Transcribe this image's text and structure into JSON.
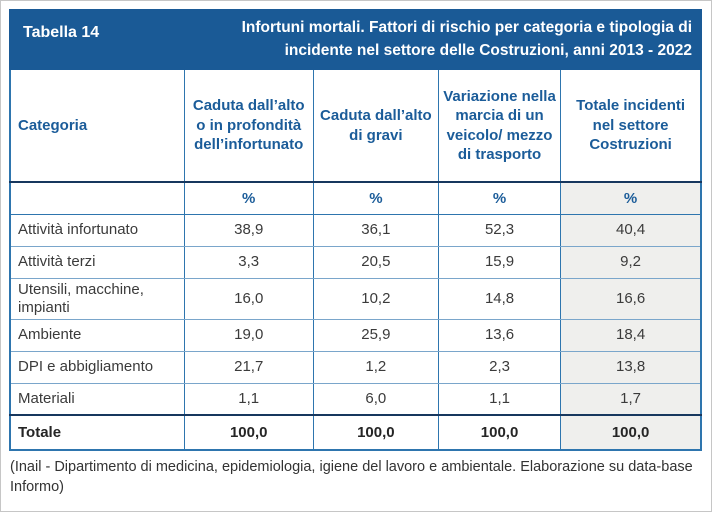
{
  "page": {
    "label": "Tabella 14",
    "title": "Infortuni mortali. Fattori di rischio per categoria e tipologia di incidente nel settore delle Costruzioni, anni 2013 - 2022",
    "footnote": "(Inail - Dipartimento di medicina, epidemiologia, igiene del lavoro e ambientale. Elaborazione su data-base Informo)"
  },
  "chart_data": {
    "type": "table",
    "title": "Infortuni mortali. Fattori di rischio per categoria e tipologia di incidente nel settore delle Costruzioni, anni 2013 - 2022",
    "columns": [
      "Categoria",
      "Caduta dall’alto o in profondità dell’infortunato",
      "Caduta dall’alto di gravi",
      "Variazione nella marcia di un veicolo/ mezzo di trasporto",
      "Totale incidenti nel settore Costruzioni"
    ],
    "unit_row": [
      "",
      "%",
      "%",
      "%",
      "%"
    ],
    "rows": [
      {
        "category": "Attività infortunato",
        "values": [
          "38,9",
          "36,1",
          "52,3",
          "40,4"
        ]
      },
      {
        "category": "Attività terzi",
        "values": [
          "3,3",
          "20,5",
          "15,9",
          "9,2"
        ]
      },
      {
        "category": "Utensili, macchine, impianti",
        "values": [
          "16,0",
          "10,2",
          "14,8",
          "16,6"
        ]
      },
      {
        "category": "Ambiente",
        "values": [
          "19,0",
          "25,9",
          "13,6",
          "18,4"
        ]
      },
      {
        "category": "DPI e abbigliamento",
        "values": [
          "21,7",
          "1,2",
          "2,3",
          "13,8"
        ]
      },
      {
        "category": "Materiali",
        "values": [
          "1,1",
          "6,0",
          "1,1",
          "1,7"
        ]
      }
    ],
    "total_row": {
      "category": "Totale",
      "values": [
        "100,0",
        "100,0",
        "100,0",
        "100,0"
      ]
    }
  },
  "colors": {
    "band_background": "#1a5a96",
    "header_text": "#1b5c99",
    "border_medium": "#2e75ae",
    "border_dark": "#17375e",
    "border_light": "#7aa6cb",
    "highlight_column_background": "#efefed",
    "body_text": "#3b3b3b"
  }
}
